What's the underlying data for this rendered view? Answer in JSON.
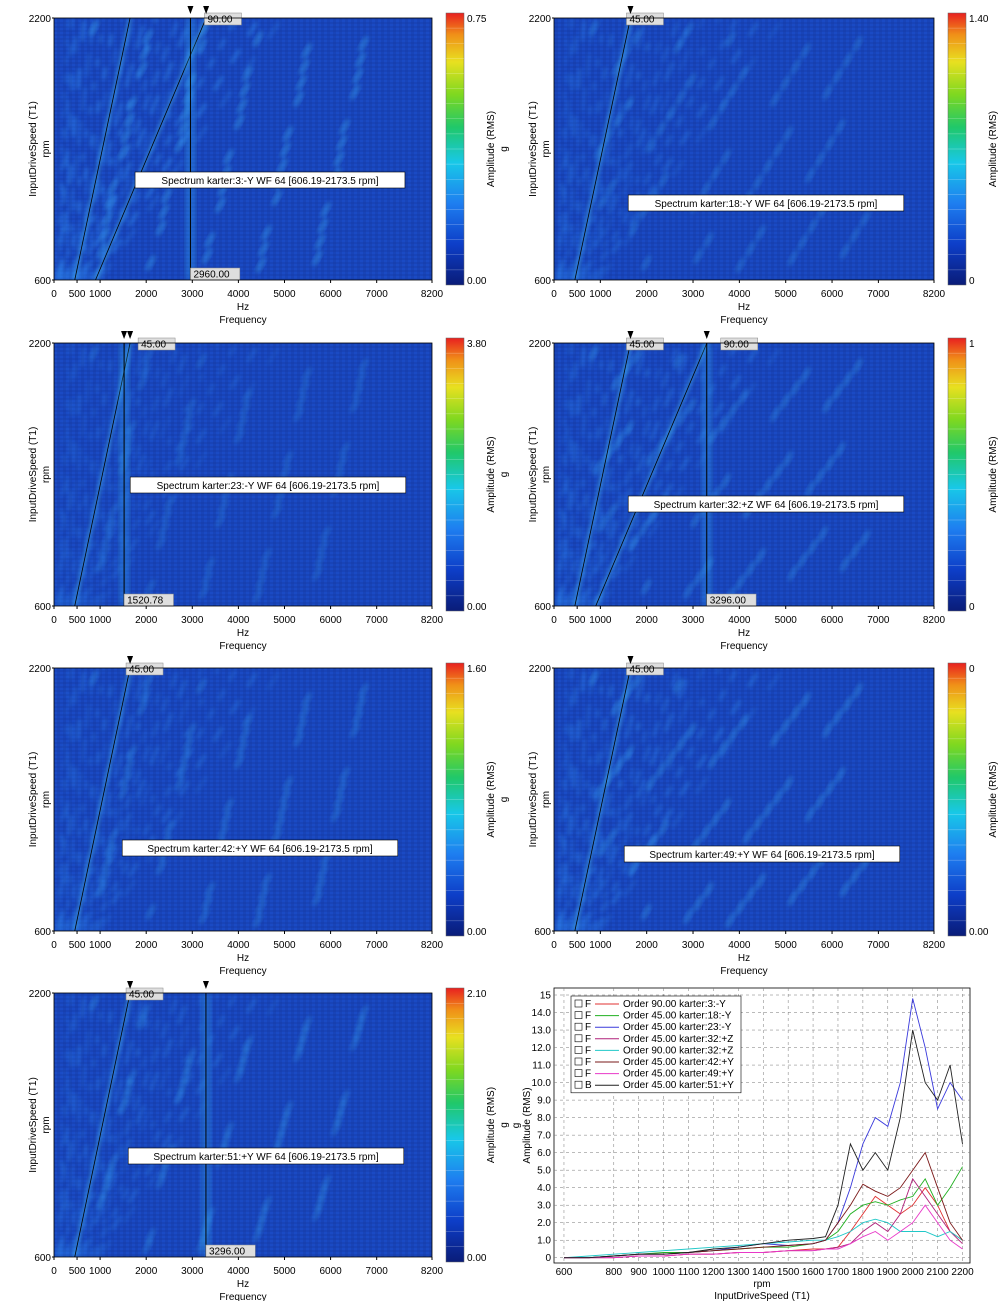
{
  "chart_data": [
    {
      "type": "heatmap",
      "label": "Spectrum karter:3:-Y WF 64 [606.19-2173.5 rpm]",
      "xlabel_unit": "Hz",
      "xlabel": "Frequency",
      "ylabel_unit": "rpm",
      "ylabel": "InputDriveSpeed (T1)",
      "xticks": [
        "0",
        "500",
        "1000",
        "2000",
        "3000",
        "4000",
        "5000",
        "6000",
        "7000",
        "8200"
      ],
      "yticks": [
        "600",
        "2200"
      ],
      "xlim": [
        0,
        8200
      ],
      "ylim": [
        600,
        2200
      ],
      "colorbar": {
        "label": "Amplitude (RMS)",
        "unit": "g",
        "max": "0.75",
        "min": "0.00"
      },
      "cursors": [
        {
          "value": 2960,
          "label": "2960.00",
          "order_label": "90.00"
        }
      ],
      "order_markers": [
        2960,
        3300
      ],
      "order_lines": [
        90,
        45
      ],
      "intensity": 1.3
    },
    {
      "type": "heatmap",
      "label": "Spectrum karter:18:-Y WF 64 [606.19-2173.5 rpm]",
      "xlabel_unit": "Hz",
      "xlabel": "Frequency",
      "ylabel_unit": "rpm",
      "ylabel": "InputDriveSpeed (T1)",
      "xticks": [
        "0",
        "500",
        "1000",
        "2000",
        "3000",
        "4000",
        "5000",
        "6000",
        "7000",
        "8200"
      ],
      "yticks": [
        "600",
        "2200"
      ],
      "xlim": [
        0,
        8200
      ],
      "ylim": [
        600,
        2200
      ],
      "colorbar": {
        "label": "Amplitude (RMS)",
        "unit": "g",
        "max": "1.40",
        "min": "0"
      },
      "cursors": [],
      "order_label": "45.00",
      "order_markers": [
        1650
      ],
      "order_lines": [
        45
      ],
      "intensity": 0.9
    },
    {
      "type": "heatmap",
      "label": "Spectrum karter:23:-Y WF 64 [606.19-2173.5 rpm]",
      "xlabel_unit": "Hz",
      "xlabel": "Frequency",
      "ylabel_unit": "rpm",
      "ylabel": "InputDriveSpeed (T1)",
      "xticks": [
        "0",
        "500",
        "1000",
        "2000",
        "3000",
        "4000",
        "5000",
        "6000",
        "7000",
        "8200"
      ],
      "yticks": [
        "600",
        "2200"
      ],
      "xlim": [
        0,
        8200
      ],
      "ylim": [
        600,
        2200
      ],
      "colorbar": {
        "label": "Amplitude (RMS)",
        "unit": "g",
        "max": "3.80",
        "min": "0.00"
      },
      "cursors": [
        {
          "value": 1520.78,
          "label": "1520.78",
          "order_label": "45.00"
        }
      ],
      "order_markers": [
        1520,
        1650
      ],
      "order_lines": [
        45
      ],
      "intensity": 0.7
    },
    {
      "type": "heatmap",
      "label": "Spectrum karter:32:+Z WF 64 [606.19-2173.5 rpm]",
      "xlabel_unit": "Hz",
      "xlabel": "Frequency",
      "ylabel_unit": "rpm",
      "ylabel": "InputDriveSpeed (T1)",
      "xticks": [
        "0",
        "500",
        "1000",
        "2000",
        "3000",
        "4000",
        "5000",
        "6000",
        "7000",
        "8200"
      ],
      "yticks": [
        "600",
        "2200"
      ],
      "xlim": [
        0,
        8200
      ],
      "ylim": [
        600,
        2200
      ],
      "colorbar": {
        "label": "Amplitude (RMS)",
        "unit": "g",
        "max": "1",
        "min": "0"
      },
      "cursors": [
        {
          "value": 3296,
          "label": "3296.00",
          "order_label": "90.00"
        }
      ],
      "order_label": "45.00",
      "order_markers": [
        1650,
        3296
      ],
      "order_lines": [
        45,
        90
      ],
      "intensity": 1.0
    },
    {
      "type": "heatmap",
      "label": "Spectrum karter:42:+Y WF 64 [606.19-2173.5 rpm]",
      "xlabel_unit": "Hz",
      "xlabel": "Frequency",
      "ylabel_unit": "rpm",
      "ylabel": "InputDriveSpeed (T1)",
      "xticks": [
        "0",
        "500",
        "1000",
        "2000",
        "3000",
        "4000",
        "5000",
        "6000",
        "7000",
        "8200"
      ],
      "yticks": [
        "600",
        "2200"
      ],
      "xlim": [
        0,
        8200
      ],
      "ylim": [
        600,
        2200
      ],
      "colorbar": {
        "label": "Amplitude (RMS)",
        "unit": "g",
        "max": "1.60",
        "min": "0.00"
      },
      "cursors": [],
      "order_label": "45.00",
      "order_markers": [
        1650
      ],
      "order_lines": [
        45
      ],
      "intensity": 0.9
    },
    {
      "type": "heatmap",
      "label": "Spectrum karter:49:+Y WF 64 [606.19-2173.5 rpm]",
      "xlabel_unit": "Hz",
      "xlabel": "Frequency",
      "ylabel_unit": "rpm",
      "ylabel": "InputDriveSpeed (T1)",
      "xticks": [
        "0",
        "500",
        "1000",
        "2000",
        "3000",
        "4000",
        "5000",
        "6000",
        "7000",
        "8200"
      ],
      "yticks": [
        "600",
        "2200"
      ],
      "xlim": [
        0,
        8200
      ],
      "ylim": [
        600,
        2200
      ],
      "colorbar": {
        "label": "Amplitude (RMS)",
        "unit": "g",
        "max": "0",
        "min": "0.00"
      },
      "cursors": [],
      "order_label": "45.00",
      "order_markers": [
        1650
      ],
      "order_lines": [
        45
      ],
      "intensity": 1.1
    },
    {
      "type": "heatmap",
      "label": "Spectrum karter:51:+Y WF 64 [606.19-2173.5 rpm]",
      "xlabel_unit": "Hz",
      "xlabel": "Frequency",
      "ylabel_unit": "rpm",
      "ylabel": "InputDriveSpeed (T1)",
      "xticks": [
        "0",
        "500",
        "1000",
        "2000",
        "3000",
        "4000",
        "5000",
        "6000",
        "7000",
        "8200"
      ],
      "yticks": [
        "600",
        "2200"
      ],
      "xlim": [
        0,
        8200
      ],
      "ylim": [
        600,
        2200
      ],
      "colorbar": {
        "label": "Amplitude (RMS)",
        "unit": "g",
        "max": "2.10",
        "min": "0.00"
      },
      "cursors": [
        {
          "value": 3296,
          "label": "3296.00",
          "order_label": ""
        }
      ],
      "order_label": "45.00",
      "order_markers": [
        1650,
        3296
      ],
      "order_lines": [
        45
      ],
      "intensity": 0.9
    },
    {
      "type": "line",
      "xlabel_unit": "rpm",
      "xlabel": "InputDriveSpeed (T1)",
      "ylabel_unit": "g",
      "ylabel": "Amplitude (RMS)",
      "xticks": [
        "600",
        "800",
        "900",
        "1000",
        "1100",
        "1200",
        "1300",
        "1400",
        "1500",
        "1600",
        "1700",
        "1800",
        "1900",
        "2000",
        "2100",
        "2200"
      ],
      "yticks": [
        "0",
        "1.0",
        "2.0",
        "3.0",
        "4.0",
        "5.0",
        "6.0",
        "7.0",
        "8.0",
        "9.0",
        "10.0",
        "11.0",
        "12.0",
        "13.0",
        "14.0",
        "15"
      ],
      "xlim": [
        560,
        2230
      ],
      "ylim": [
        -0.3,
        15.4
      ],
      "grid": true,
      "legend_position": "top-left",
      "x": [
        600,
        700,
        800,
        900,
        1000,
        1100,
        1200,
        1300,
        1400,
        1500,
        1600,
        1650,
        1700,
        1750,
        1800,
        1850,
        1900,
        1950,
        2000,
        2050,
        2100,
        2150,
        2200
      ],
      "series": [
        {
          "flag": "F",
          "name": "Order 90.00 karter:3:-Y",
          "color": "#e03030",
          "values": [
            0,
            0,
            0,
            0.1,
            0.1,
            0.2,
            0.2,
            0.3,
            0.3,
            0.4,
            0.5,
            0.5,
            0.6,
            1.5,
            2.5,
            3.5,
            3.0,
            2.5,
            3.0,
            4.0,
            3.0,
            1.5,
            1.0
          ]
        },
        {
          "flag": "F",
          "name": "Order 45.00 karter:18:-Y",
          "color": "#20b020",
          "values": [
            0,
            0,
            0.1,
            0.2,
            0.3,
            0.3,
            0.4,
            0.5,
            0.6,
            0.6,
            0.8,
            1.0,
            1.5,
            2.5,
            3.0,
            3.2,
            3.0,
            3.3,
            3.5,
            4.5,
            3.0,
            4.0,
            5.2
          ]
        },
        {
          "flag": "F",
          "name": "Order 45.00 karter:23:-Y",
          "color": "#3a3adc",
          "values": [
            0,
            0,
            0.1,
            0.2,
            0.2,
            0.3,
            0.4,
            0.6,
            0.8,
            0.7,
            0.8,
            1.0,
            2.0,
            4.0,
            6.5,
            8.0,
            7.5,
            10.0,
            14.8,
            12.0,
            8.5,
            10.0,
            9.0
          ]
        },
        {
          "flag": "F",
          "name": "Order 45.00 karter:32:+Z",
          "color": "#b0207a",
          "values": [
            0,
            0,
            0,
            0.1,
            0.1,
            0.2,
            0.2,
            0.3,
            0.3,
            0.4,
            0.4,
            0.5,
            0.6,
            0.8,
            1.5,
            2.0,
            1.5,
            2.5,
            4.5,
            3.5,
            2.5,
            1.5,
            0.8
          ]
        },
        {
          "flag": "F",
          "name": "Order 90.00 karter:32:+Z",
          "color": "#20c8c8",
          "values": [
            0,
            0.1,
            0.2,
            0.3,
            0.4,
            0.5,
            0.6,
            0.7,
            0.8,
            0.9,
            1.0,
            1.0,
            1.2,
            1.5,
            2.0,
            2.2,
            2.0,
            1.5,
            1.5,
            1.5,
            1.2,
            1.5,
            1.0
          ]
        },
        {
          "flag": "F",
          "name": "Order 45.00 karter:42:+Y",
          "color": "#7a1818",
          "values": [
            0,
            0,
            0.1,
            0.2,
            0.2,
            0.3,
            0.4,
            0.5,
            0.6,
            0.7,
            0.8,
            1.0,
            2.0,
            3.0,
            4.2,
            3.8,
            3.5,
            4.0,
            5.0,
            6.0,
            4.0,
            2.0,
            1.0
          ]
        },
        {
          "flag": "F",
          "name": "Order 45.00 karter:49:+Y",
          "color": "#e838c8",
          "values": [
            0,
            0,
            0,
            0.1,
            0.1,
            0.2,
            0.2,
            0.3,
            0.3,
            0.4,
            0.4,
            0.5,
            0.5,
            0.8,
            1.2,
            1.5,
            1.0,
            1.5,
            2.0,
            3.0,
            2.0,
            1.0,
            0.5
          ]
        },
        {
          "flag": "B",
          "name": "Order 45.00 karter:51:+Y",
          "color": "#202020",
          "values": [
            0,
            0,
            0.1,
            0.2,
            0.2,
            0.3,
            0.5,
            0.6,
            0.8,
            1.0,
            1.1,
            1.2,
            3.0,
            6.5,
            5.0,
            6.0,
            5.0,
            8.0,
            13.0,
            10.0,
            9.0,
            11.0,
            6.5
          ]
        }
      ]
    }
  ]
}
